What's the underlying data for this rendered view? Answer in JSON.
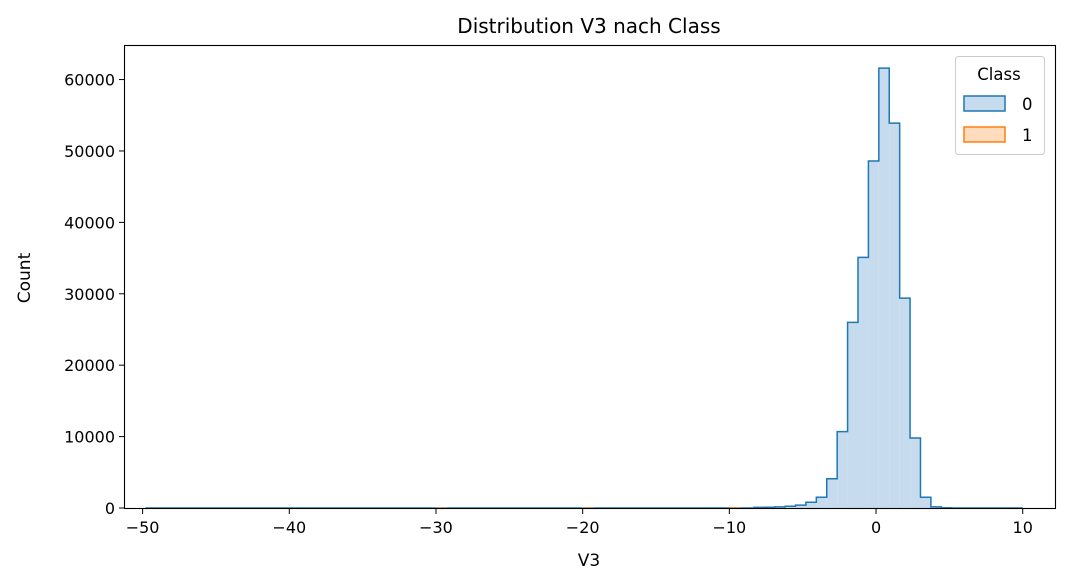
{
  "chart_data": {
    "type": "histogram",
    "title": "Distribution V3 nach Class",
    "xlabel": "V3",
    "ylabel": "Count",
    "xlim": [
      -51.2,
      12.2
    ],
    "ylim": [
      0,
      64700
    ],
    "x_ticks": [
      -50,
      -40,
      -30,
      -20,
      -10,
      0,
      10
    ],
    "x_tick_labels": [
      "−50",
      "−40",
      "−30",
      "−20",
      "−10",
      "0",
      "10"
    ],
    "y_ticks": [
      0,
      10000,
      20000,
      30000,
      40000,
      50000,
      60000
    ],
    "y_tick_labels": [
      "0",
      "10000",
      "20000",
      "30000",
      "40000",
      "50000",
      "60000"
    ],
    "bin_edges_start": -49.8,
    "bin_width": 0.71,
    "legend": {
      "title": "Class",
      "position": "top-right",
      "entries": [
        {
          "label": "0",
          "edge": "#1f77b4",
          "fill": "#c6dbed"
        },
        {
          "label": "1",
          "edge": "#ff7f0e",
          "fill": "#ffdcbd"
        }
      ]
    },
    "series": [
      {
        "name": "0",
        "color": "#1f77b4",
        "fill": "#c6dbed",
        "bins": [
          {
            "x0": -8.33,
            "count": 80
          },
          {
            "x0": -7.62,
            "count": 100
          },
          {
            "x0": -6.91,
            "count": 150
          },
          {
            "x0": -6.2,
            "count": 250
          },
          {
            "x0": -5.49,
            "count": 400
          },
          {
            "x0": -4.78,
            "count": 800
          },
          {
            "x0": -4.07,
            "count": 1500
          },
          {
            "x0": -3.36,
            "count": 4100
          },
          {
            "x0": -2.65,
            "count": 10700
          },
          {
            "x0": -1.94,
            "count": 26000
          },
          {
            "x0": -1.23,
            "count": 35100
          },
          {
            "x0": -0.52,
            "count": 48600
          },
          {
            "x0": 0.19,
            "count": 61600
          },
          {
            "x0": 0.9,
            "count": 53900
          },
          {
            "x0": 1.61,
            "count": 29400
          },
          {
            "x0": 2.32,
            "count": 9800
          },
          {
            "x0": 3.03,
            "count": 1500
          },
          {
            "x0": 3.74,
            "count": 150
          },
          {
            "x0": 4.45,
            "count": 20
          }
        ]
      },
      {
        "name": "1",
        "color": "#ff7f0e",
        "fill": "#ffdcbd",
        "bins": [
          {
            "x0": -30.0,
            "count": 5
          },
          {
            "x0": -20.0,
            "count": 10
          },
          {
            "x0": -10.0,
            "count": 25
          },
          {
            "x0": -5.0,
            "count": 40
          },
          {
            "x0": 0.0,
            "count": 30
          }
        ]
      }
    ]
  }
}
